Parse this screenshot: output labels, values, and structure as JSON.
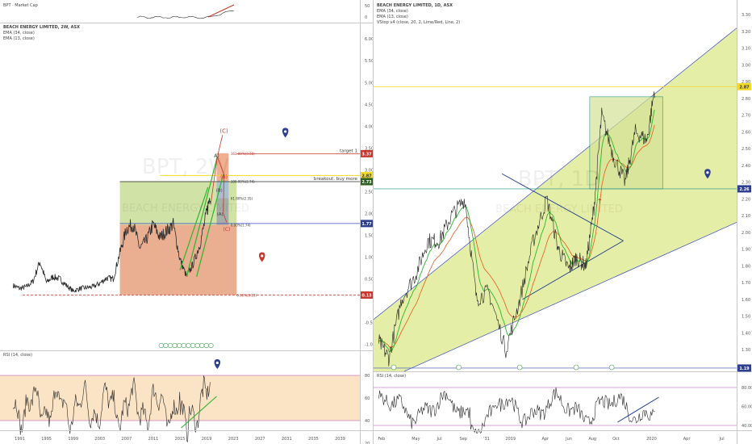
{
  "colors": {
    "background": "#ffffff",
    "channel_fill": "#e2ec9c",
    "channel_line": "#3b4bc8",
    "rect_green": "#c9dd97",
    "rect_red": "#e6a07c",
    "rsi_band": "#fbe3c5",
    "price_red": "#d04a34",
    "price_green": "#2db52d",
    "ema_red": "#e45a1d",
    "teal": "#1a8f86",
    "navy": "#1b3a8c",
    "yellow_line": "#f2d92a",
    "label_red": "#c8372d",
    "label_dark": "#3a3a3a",
    "label_green": "#2e5e1f",
    "label_navy": "#2d3f8e"
  },
  "left": {
    "top_pane_title": "BPT · Market Cap",
    "title": "BEACH ENERGY LIMITED, 2W, ASX",
    "indicators": [
      "EMA (34, close)",
      "EMA (13, close)"
    ],
    "watermark": "BPT, 2W",
    "watermark_sub": "BEACH ENERGY LIMITED",
    "rsi_title": "RSI (14, close)",
    "x_ticks": [
      "1991",
      "1995",
      "1999",
      "2003",
      "2007",
      "2011",
      "2015",
      "2019",
      "2023",
      "2027",
      "2031",
      "2035",
      "2039"
    ],
    "top_axis": [
      "50",
      "0"
    ],
    "y_ticks": [
      "6.00",
      "5.50",
      "5.00",
      "4.50",
      "4.00",
      "3.50",
      "3.00",
      "2.50",
      "2.00",
      "1.50",
      "1.00",
      "0.50",
      "-0.50",
      "-1.00"
    ],
    "rsi_ticks": [
      "80",
      "60",
      "40",
      "20"
    ],
    "labels": {
      "target": "target 1",
      "target_price": "3.37",
      "breakout": "breakout. buy more",
      "breakout_price": "2.73",
      "yellow_price": "2.87",
      "level_1": "1.77",
      "level_low": "0.13",
      "fib_161": "161.80%(3.38)",
      "fib_100": "100.00%(2.74)",
      "fib_618": "61.80%(2.35)",
      "fib_0": "0.00%(1.74)",
      "fib_low": "0.00%(0.13)",
      "wave_C_top": "(C)",
      "wave_A": "A)",
      "wave_B": "(B)",
      "wave_paren_B": "(B)",
      "wave_paren_A": "(A)",
      "wave_C_bottom": "(C)"
    }
  },
  "right": {
    "title": "BEACH ENERGY LIMITED, 1D, ASX",
    "indicators": [
      "EMA (34, close)",
      "EMA (13, close)",
      "VStop v4 (close, 20, 2, Lime/Red, Line, 2)"
    ],
    "watermark": "BPT, 1D",
    "watermark_sub": "BEACH ENERGY LIMITED",
    "rsi_title": "RSI (14, close)",
    "x_ticks": [
      "Feb",
      "May",
      "Jul",
      "Sep",
      "'31",
      "2019",
      "Apr",
      "Jun",
      "Aug",
      "Oct",
      "2020",
      "Apr",
      "Jul"
    ],
    "y_ticks": [
      "3.30",
      "3.20",
      "3.10",
      "3.00",
      "2.90",
      "2.80",
      "2.70",
      "2.60",
      "2.50",
      "2.40",
      "2.30",
      "2.20",
      "2.10",
      "2.00",
      "1.90",
      "1.80",
      "1.70",
      "1.60",
      "1.50",
      "1.40",
      "1.30",
      "1.20"
    ],
    "rsi_ticks": [
      "80.00",
      "60.00",
      "40.00"
    ],
    "price_tags": {
      "last": "2.87",
      "level": "2.26",
      "bottom": "1.19"
    },
    "arrow": "↑"
  },
  "chart_data": [
    {
      "type": "line",
      "title": "BEACH ENERGY LIMITED, 2W, ASX",
      "x_range": [
        1989,
        2041
      ],
      "ylim": [
        -1.1,
        6.3
      ],
      "series": [
        {
          "name": "BPT",
          "x": [
            1990,
            1991,
            1992,
            1993,
            1994,
            1995,
            1996,
            1997,
            1998,
            1999,
            2000,
            2001,
            2002,
            2003,
            2004,
            2005,
            2006,
            2007,
            2008,
            2009,
            2010,
            2011,
            2012,
            2013,
            2014,
            2015,
            2016,
            2017,
            2018,
            2019,
            2019.6
          ],
          "values": [
            0.35,
            0.28,
            0.32,
            0.45,
            0.9,
            0.42,
            0.55,
            0.5,
            0.35,
            0.22,
            0.28,
            0.3,
            0.32,
            0.4,
            0.52,
            0.5,
            1.1,
            1.65,
            1.75,
            1.2,
            1.4,
            1.75,
            1.45,
            1.6,
            1.75,
            0.95,
            0.55,
            0.85,
            1.3,
            2.0,
            2.5
          ]
        }
      ],
      "levels": [
        3.37,
        2.87,
        2.73,
        1.77,
        0.13
      ],
      "fib_levels": [
        3.38,
        2.74,
        2.35,
        1.74,
        0.13
      ],
      "grid": true
    },
    {
      "type": "line",
      "title": "BEACH ENERGY LIMITED, 1D, ASX",
      "x_range": [
        "2018-01-20",
        "2020-07-31"
      ],
      "ylim": [
        1.18,
        3.32
      ],
      "series": [
        {
          "name": "BPT",
          "x": [
            "2018-01-25",
            "2018-02-20",
            "2018-03-25",
            "2018-05-01",
            "2018-06-01",
            "2018-07-01",
            "2018-08-01",
            "2018-09-05",
            "2018-10-05",
            "2018-11-05",
            "2018-12-20",
            "2019-01-25",
            "2019-03-01",
            "2019-04-05",
            "2019-05-05",
            "2019-06-01",
            "2019-06-20",
            "2019-07-15",
            "2019-08-05",
            "2019-08-25",
            "2019-09-25",
            "2019-10-25",
            "2019-11-20",
            "2019-12-20",
            "2020-01-10"
          ],
          "values": [
            1.35,
            1.25,
            1.6,
            1.75,
            1.95,
            1.95,
            2.1,
            2.2,
            1.6,
            1.65,
            1.3,
            1.6,
            1.95,
            2.2,
            1.9,
            1.78,
            1.85,
            1.8,
            2.15,
            2.7,
            2.45,
            2.3,
            2.6,
            2.55,
            2.87
          ]
        }
      ],
      "levels": [
        2.87,
        2.26,
        1.19
      ],
      "grid": false
    }
  ]
}
